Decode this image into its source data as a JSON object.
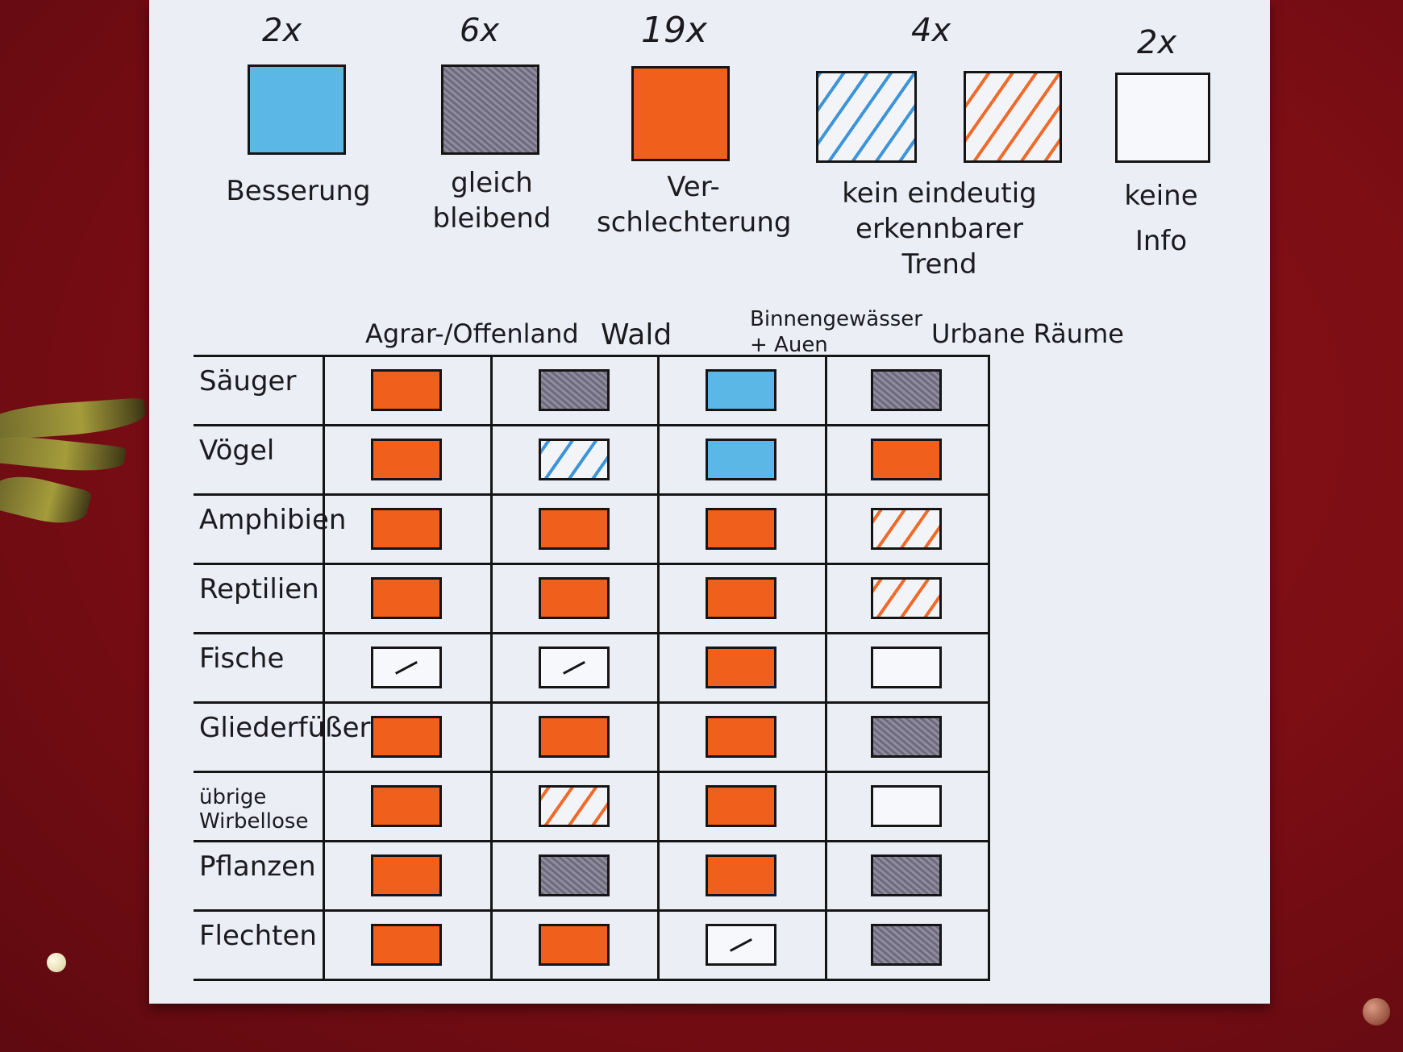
{
  "legend": [
    {
      "count": "2x",
      "label_lines": [
        "Besserung"
      ],
      "status": "improvement",
      "color": "#5bb7e6"
    },
    {
      "count": "6x",
      "label_lines": [
        "gleich",
        "bleibend"
      ],
      "status": "stable",
      "color": "#85829a"
    },
    {
      "count": "19x",
      "label_lines": [
        "Ver-",
        "schlechterung"
      ],
      "status": "worsening",
      "color": "#f15f1c"
    },
    {
      "count": "4x",
      "label_lines": [
        "kein eindeutig",
        "erkennbarer",
        "Trend"
      ],
      "status": "no_clear_trend",
      "color": "#3e94d8"
    },
    {
      "count": "2x",
      "label_lines": [
        "keine",
        "Info"
      ],
      "status": "no_info",
      "color": "#f7f8fb"
    }
  ],
  "table": {
    "columns": [
      "Agrar-/Offenland",
      "Wald",
      "Binnengewässer + Auen",
      "Urbane Räume"
    ],
    "rows": [
      {
        "label": "Säuger",
        "cells": [
          "orange",
          "gray",
          "blue",
          "gray"
        ]
      },
      {
        "label": "Vögel",
        "cells": [
          "orange",
          "hblue",
          "blue",
          "orange"
        ]
      },
      {
        "label": "Amphibien",
        "cells": [
          "orange",
          "orange",
          "orange",
          "horange"
        ]
      },
      {
        "label": "Reptilien",
        "cells": [
          "orange",
          "orange",
          "orange",
          "horange"
        ]
      },
      {
        "label": "Fische",
        "cells": [
          "na",
          "na",
          "orange",
          "none"
        ]
      },
      {
        "label": "Gliederfüßer",
        "cells": [
          "orange",
          "orange",
          "orange",
          "gray"
        ]
      },
      {
        "label": "übrige Wirbellose",
        "cells": [
          "orange",
          "horange",
          "orange",
          "none"
        ]
      },
      {
        "label": "Pflanzen",
        "cells": [
          "orange",
          "gray",
          "orange",
          "gray"
        ]
      },
      {
        "label": "Flechten",
        "cells": [
          "orange",
          "orange",
          "na",
          "gray"
        ]
      }
    ]
  }
}
